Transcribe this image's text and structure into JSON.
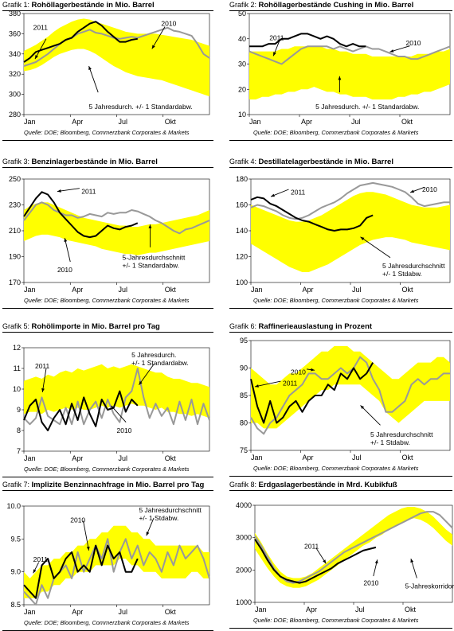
{
  "common": {
    "series_2011": "2011",
    "series_2010": "2010",
    "x_ticks": [
      "Jan",
      "Apr",
      "Jul",
      "Okt"
    ],
    "colors": {
      "band": "#FFFF00",
      "line_2011": "#000000",
      "line_2010": "#999999"
    }
  },
  "charts": [
    {
      "prefix": "Grafik 1:",
      "title": "Rohöllagerbestände in Mio. Barrel",
      "source": "Quelle: DOE; Bloomberg, Commerzbank Corporates & Markets",
      "band_label": [
        "5 Jahresdurch. +/-  1 Standardabw."
      ],
      "chart_data": {
        "type": "line",
        "ylim": [
          280,
          380
        ],
        "yticks": [
          280,
          300,
          320,
          340,
          360,
          380
        ],
        "band_lower": [
          323,
          324,
          326,
          329,
          333,
          337,
          340,
          342,
          344,
          345,
          345,
          343,
          340,
          336,
          332,
          328,
          325,
          322,
          320,
          318,
          317,
          316,
          315,
          314,
          312,
          310,
          308,
          306,
          304,
          302,
          300,
          298
        ],
        "band_upper": [
          343,
          346,
          349,
          353,
          357,
          362,
          366,
          369,
          372,
          374,
          375,
          374,
          372,
          370,
          368,
          366,
          364,
          362,
          361,
          360,
          360,
          360,
          360,
          359,
          358,
          357,
          356,
          355,
          354,
          352,
          350,
          348
        ],
        "series_2011": [
          332,
          336,
          342,
          344,
          346,
          348,
          350,
          354,
          356,
          362,
          366,
          370,
          372,
          368,
          362,
          357,
          352,
          352,
          354,
          355
        ],
        "series_2010": [
          328,
          330,
          332,
          336,
          340,
          345,
          350,
          354,
          356,
          360,
          362,
          364,
          361,
          360,
          358,
          356,
          355,
          356,
          357,
          356,
          358,
          360,
          362,
          364,
          366,
          363,
          362,
          360,
          358,
          350,
          340,
          336
        ]
      }
    },
    {
      "prefix": "Grafik 2:",
      "title": "Rohöllagerbestände Cushing in Mio. Barrel",
      "source": "Quelle: DOE; Bloomberg, Commerzbank Corporates & Markets",
      "band_label": [
        "5 Jahresdurch. +/-  1 Standardabw."
      ],
      "chart_data": {
        "type": "line",
        "ylim": [
          10,
          50
        ],
        "yticks": [
          10,
          20,
          30,
          40,
          50
        ],
        "band_lower": [
          16,
          16,
          17,
          17,
          18,
          18,
          19,
          19,
          20,
          20,
          21,
          20,
          19,
          19,
          18,
          18,
          17,
          17,
          17,
          16,
          16,
          16,
          16,
          17,
          17,
          18,
          18,
          19,
          19,
          20,
          21,
          22
        ],
        "band_upper": [
          35,
          35,
          35,
          35,
          35,
          36,
          36,
          37,
          37,
          37,
          37,
          37,
          36,
          36,
          35,
          35,
          34,
          34,
          34,
          33,
          33,
          33,
          33,
          33,
          33,
          33,
          34,
          34,
          34,
          35,
          35,
          36
        ],
        "series_2011": [
          37,
          37,
          37,
          38,
          38,
          40,
          40,
          41,
          42,
          42,
          41,
          40,
          41,
          40,
          38,
          37,
          38,
          37,
          37
        ],
        "series_2010": [
          35,
          34,
          33,
          32,
          31,
          30,
          32,
          34,
          36,
          37,
          37,
          37,
          37,
          36,
          37,
          36,
          35,
          36,
          37,
          36,
          36,
          35,
          34,
          33,
          33,
          32,
          32,
          33,
          34,
          35,
          36,
          37
        ]
      }
    },
    {
      "prefix": "Grafik 3:",
      "title": "Benzinlagerbestände in Mio. Barrel",
      "source": "Quelle: DOE; Bloomberg, Commerzbank Corporates & Markets",
      "band_label": [
        "5-Jahresdurchschnitt",
        "+/- 1 Standardabw."
      ],
      "chart_data": {
        "type": "line",
        "ylim": [
          170,
          250
        ],
        "yticks": [
          170,
          190,
          210,
          230,
          250
        ],
        "band_lower": [
          202,
          204,
          206,
          207,
          207,
          206,
          205,
          203,
          202,
          201,
          200,
          199,
          198,
          196,
          195,
          194,
          193,
          192,
          192,
          191,
          192,
          193,
          193,
          194,
          195,
          196,
          197,
          198,
          199,
          200,
          201,
          202
        ],
        "band_upper": [
          226,
          229,
          231,
          232,
          232,
          230,
          228,
          226,
          224,
          222,
          220,
          219,
          218,
          217,
          216,
          215,
          214,
          214,
          213,
          213,
          214,
          215,
          215,
          216,
          217,
          218,
          219,
          220,
          221,
          222,
          224,
          226
        ],
        "series_2011": [
          221,
          228,
          235,
          240,
          238,
          232,
          224,
          219,
          214,
          209,
          206,
          205,
          206,
          210,
          214,
          212,
          211,
          213,
          214,
          216
        ],
        "series_2010": [
          218,
          224,
          230,
          232,
          230,
          226,
          224,
          222,
          222,
          220,
          221,
          223,
          222,
          221,
          224,
          223,
          224,
          224,
          226,
          225,
          223,
          221,
          218,
          216,
          213,
          210,
          208,
          211,
          212,
          214,
          216,
          218
        ]
      }
    },
    {
      "prefix": "Grafik 4:",
      "title": "Destillatelagerbestände in Mio. Barrel",
      "source": "Quelle: DOE; Bloomberg, Commerzbank Corporates & Markets",
      "band_label": [
        "5 Jahresdurchschnitt",
        "+/- 1 Stdabw."
      ],
      "chart_data": {
        "type": "line",
        "ylim": [
          100,
          180
        ],
        "yticks": [
          100,
          120,
          140,
          160,
          180
        ],
        "band_lower": [
          130,
          127,
          124,
          121,
          118,
          115,
          112,
          110,
          108,
          108,
          110,
          112,
          114,
          117,
          120,
          123,
          126,
          129,
          131,
          133,
          134,
          135,
          135,
          134,
          133,
          131,
          130,
          129,
          128,
          127,
          126,
          125
        ],
        "band_upper": [
          160,
          158,
          156,
          154,
          152,
          150,
          148,
          147,
          147,
          148,
          150,
          152,
          155,
          158,
          161,
          164,
          167,
          169,
          170,
          170,
          169,
          168,
          166,
          164,
          162,
          160,
          159,
          158,
          158,
          158,
          159,
          160
        ],
        "series_2011": [
          164,
          166,
          165,
          161,
          159,
          156,
          153,
          150,
          148,
          147,
          145,
          143,
          141,
          140,
          141,
          141,
          142,
          144,
          150,
          152
        ],
        "series_2010": [
          158,
          160,
          159,
          157,
          155,
          152,
          150,
          149,
          150,
          152,
          155,
          158,
          160,
          162,
          165,
          169,
          172,
          175,
          176,
          177,
          176,
          175,
          174,
          172,
          170,
          166,
          161,
          159,
          160,
          161,
          162,
          162
        ]
      }
    },
    {
      "prefix": "Grafik 5:",
      "title": "Rohölimporte in Mio. Barrel pro Tag",
      "source": "Quelle: DOE; Bloomberg, Commerzbank Corporates & Markets",
      "band_label": [
        "5 Jahresdurch.",
        "+/-  1 Standardabw."
      ],
      "chart_data": {
        "type": "line",
        "ylim": [
          7,
          12
        ],
        "yticks": [
          7,
          8,
          9,
          10,
          11,
          12
        ],
        "band_lower": [
          8.8,
          8.9,
          8.9,
          8.8,
          9.0,
          8.9,
          9.0,
          9.1,
          9.0,
          9.1,
          9.0,
          9.0,
          9.1,
          9.2,
          9.1,
          9.2,
          9.1,
          9.2,
          9.3,
          9.2,
          9.2,
          9.1,
          9.0,
          9.1,
          8.9,
          8.9,
          8.8,
          8.8,
          8.7,
          8.8,
          8.7,
          8.6
        ],
        "band_upper": [
          10.4,
          10.5,
          10.6,
          10.5,
          10.7,
          10.6,
          10.8,
          10.9,
          10.8,
          11.0,
          10.9,
          11.0,
          11.1,
          11.2,
          11.0,
          11.1,
          11.0,
          11.1,
          11.2,
          11.1,
          11.0,
          10.9,
          10.8,
          10.8,
          10.6,
          10.5,
          10.5,
          10.4,
          10.3,
          10.3,
          10.2,
          10.1
        ],
        "series_2011": [
          8.5,
          9.2,
          9.5,
          8.4,
          8.0,
          8.6,
          9.0,
          8.3,
          9.3,
          8.5,
          9.6,
          8.8,
          8.2,
          9.5,
          9.0,
          9.1,
          9.9,
          8.9,
          9.5,
          9.2
        ],
        "series_2010": [
          8.6,
          8.3,
          8.6,
          9.6,
          8.7,
          8.5,
          8.3,
          9.1,
          8.3,
          9.4,
          8.3,
          9.0,
          9.4,
          8.6,
          9.5,
          8.8,
          8.4,
          9.6,
          9.9,
          11.0,
          9.6,
          8.6,
          9.3,
          8.7,
          9.1,
          8.3,
          9.4,
          8.5,
          9.5,
          8.3,
          9.3,
          8.5
        ]
      }
    },
    {
      "prefix": "Grafik 6:",
      "title": "Raffinerieauslastung in Prozent",
      "source": "Quelle: DOE; Bloomberg, Commerzbank Corporates & Markets",
      "band_label": [
        "5 Jahresdurchschnitt",
        "+/- 1 Stdabw."
      ],
      "chart_data": {
        "type": "line",
        "ylim": [
          75,
          95
        ],
        "yticks": [
          75,
          80,
          85,
          90,
          95
        ],
        "band_lower": [
          80,
          80,
          79,
          79,
          79,
          80,
          81,
          82,
          83,
          84,
          85,
          86,
          86,
          87,
          87,
          87,
          87,
          87,
          86,
          85,
          84,
          82,
          81,
          80,
          81,
          82,
          83,
          84,
          84,
          84,
          84,
          84
        ],
        "band_upper": [
          90,
          89,
          88,
          87,
          87,
          88,
          89,
          89,
          90,
          91,
          92,
          93,
          93,
          94,
          94,
          94,
          93,
          93,
          92,
          91,
          90,
          89,
          88,
          88,
          89,
          90,
          91,
          91,
          91,
          92,
          92,
          91
        ],
        "series_2011": [
          88,
          83,
          80,
          84,
          80,
          81,
          83,
          84,
          82,
          84,
          85,
          85,
          87,
          86,
          89,
          88,
          90,
          88,
          89,
          91
        ],
        "series_2010": [
          81,
          79,
          78,
          80,
          81,
          83,
          85,
          86,
          87,
          89,
          89,
          88,
          88,
          89,
          90,
          89,
          90,
          92,
          91,
          88,
          86,
          82,
          82,
          83,
          84,
          87,
          88,
          87,
          88,
          88,
          89,
          89
        ]
      }
    },
    {
      "prefix": "Grafik 7:",
      "title": "Implizite Benzinnachfrage in Mio. Barrel pro Tag",
      "source": "Quelle: DOE; Bloomberg, Commerzbank Corporates & Markets",
      "band_label": [
        "5 Jahresdurchschnitt",
        "+/- 1 Stdabw."
      ],
      "chart_data": {
        "type": "line",
        "ylim": [
          8.5,
          10.0
        ],
        "yticks": [
          8.5,
          9.0,
          9.5,
          10.0
        ],
        "band_lower": [
          8.6,
          8.6,
          8.6,
          8.7,
          8.7,
          8.8,
          8.8,
          8.9,
          8.9,
          9.0,
          9.0,
          9.0,
          9.1,
          9.1,
          9.1,
          9.1,
          9.2,
          9.2,
          9.1,
          9.1,
          9.0,
          9.0,
          9.0,
          8.9,
          8.9,
          8.9,
          8.9,
          8.9,
          9.0,
          9.0,
          8.9,
          8.9
        ],
        "band_upper": [
          9.0,
          8.9,
          9.0,
          9.1,
          9.1,
          9.2,
          9.2,
          9.3,
          9.3,
          9.4,
          9.4,
          9.5,
          9.5,
          9.6,
          9.6,
          9.7,
          9.7,
          9.7,
          9.6,
          9.6,
          9.5,
          9.5,
          9.4,
          9.4,
          9.4,
          9.4,
          9.4,
          9.4,
          9.4,
          9.4,
          9.3,
          9.3
        ],
        "series_2011": [
          8.8,
          8.7,
          8.6,
          9.1,
          9.2,
          8.9,
          9.0,
          9.2,
          9.3,
          9.0,
          9.1,
          9.0,
          9.4,
          9.1,
          9.4,
          9.2,
          9.3,
          9.0,
          9.0,
          9.2
        ],
        "series_2010": [
          8.7,
          8.6,
          8.5,
          8.8,
          8.6,
          8.9,
          9.0,
          9.1,
          8.9,
          9.3,
          9.0,
          9.2,
          9.4,
          9.2,
          9.5,
          9.0,
          9.3,
          9.5,
          9.2,
          9.4,
          9.1,
          9.3,
          9.2,
          9.0,
          9.3,
          9.1,
          9.4,
          9.2,
          9.3,
          9.4,
          9.2,
          8.9
        ]
      }
    },
    {
      "prefix": "Grafik 8:",
      "title": "Erdgaslagerbestände in Mrd. Kubikfuß",
      "source": "Quelle: DOE; Bloomberg, Commerzbank Corporates & Markets",
      "band_label": [
        "5-Jahreskorridor"
      ],
      "chart_data": {
        "type": "line",
        "ylim": [
          1000,
          4000
        ],
        "yticks": [
          1000,
          2000,
          3000,
          4000
        ],
        "band_lower": [
          2650,
          2350,
          2050,
          1800,
          1600,
          1500,
          1450,
          1450,
          1500,
          1600,
          1700,
          1850,
          2000,
          2150,
          2300,
          2450,
          2600,
          2750,
          2850,
          3000,
          3100,
          3250,
          3350,
          3450,
          3550,
          3600,
          3550,
          3450,
          3300,
          3100,
          2900,
          2750
        ],
        "band_upper": [
          3150,
          2850,
          2500,
          2200,
          1950,
          1800,
          1750,
          1750,
          1800,
          1900,
          2050,
          2200,
          2350,
          2500,
          2650,
          2800,
          2950,
          3100,
          3250,
          3400,
          3550,
          3700,
          3800,
          3900,
          3950,
          3950,
          3900,
          3800,
          3650,
          3450,
          3250,
          3100
        ],
        "series_2011": [
          2950,
          2650,
          2300,
          2000,
          1800,
          1700,
          1650,
          1600,
          1650,
          1750,
          1850,
          1950,
          2050,
          2200,
          2300,
          2400,
          2500,
          2600,
          2650,
          2700
        ],
        "series_2010": [
          3050,
          2750,
          2400,
          2050,
          1800,
          1650,
          1600,
          1650,
          1750,
          1850,
          1950,
          2100,
          2250,
          2400,
          2550,
          2650,
          2750,
          2850,
          2950,
          3050,
          3150,
          3250,
          3350,
          3450,
          3550,
          3650,
          3750,
          3800,
          3800,
          3700,
          3500,
          3300
        ]
      }
    }
  ]
}
